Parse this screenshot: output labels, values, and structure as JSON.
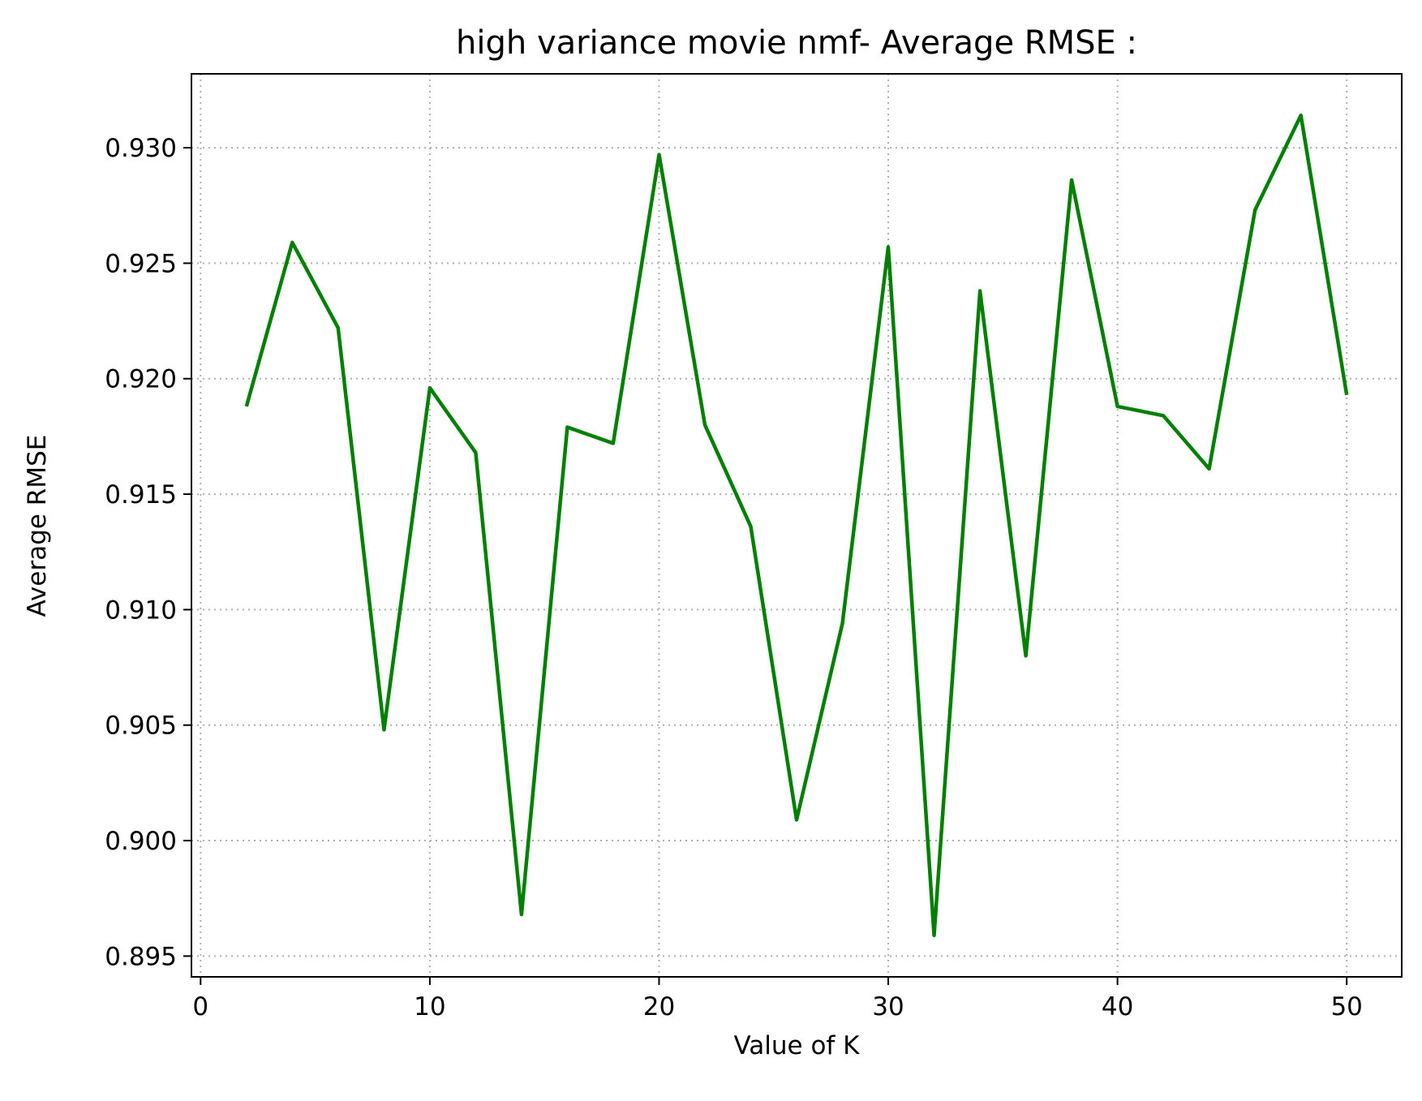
{
  "chart_data": {
    "type": "line",
    "title": "high variance movie nmf- Average RMSE :",
    "xlabel": "Value of K",
    "ylabel": "Average RMSE",
    "xlim": [
      -0.4,
      52.4
    ],
    "ylim": [
      0.8941,
      0.9332
    ],
    "xticks": [
      0,
      10,
      20,
      30,
      40,
      50
    ],
    "xtick_labels": [
      "0",
      "10",
      "20",
      "30",
      "40",
      "50"
    ],
    "yticks": [
      0.895,
      0.9,
      0.905,
      0.91,
      0.915,
      0.92,
      0.925,
      0.93
    ],
    "ytick_labels": [
      "0.895",
      "0.900",
      "0.905",
      "0.910",
      "0.915",
      "0.920",
      "0.925",
      "0.930"
    ],
    "grid": true,
    "series_color": "#008000",
    "x": [
      2,
      4,
      6,
      8,
      10,
      12,
      14,
      16,
      18,
      20,
      22,
      24,
      26,
      28,
      30,
      32,
      34,
      36,
      38,
      40,
      42,
      44,
      46,
      48,
      50
    ],
    "y": [
      0.9188,
      0.9259,
      0.9222,
      0.9048,
      0.9196,
      0.9168,
      0.8968,
      0.9179,
      0.9172,
      0.9297,
      0.918,
      0.9136,
      0.9009,
      0.9094,
      0.9257,
      0.8959,
      0.9238,
      0.908,
      0.9286,
      0.9188,
      0.9184,
      0.9161,
      0.9273,
      0.9314,
      0.9193
    ]
  }
}
